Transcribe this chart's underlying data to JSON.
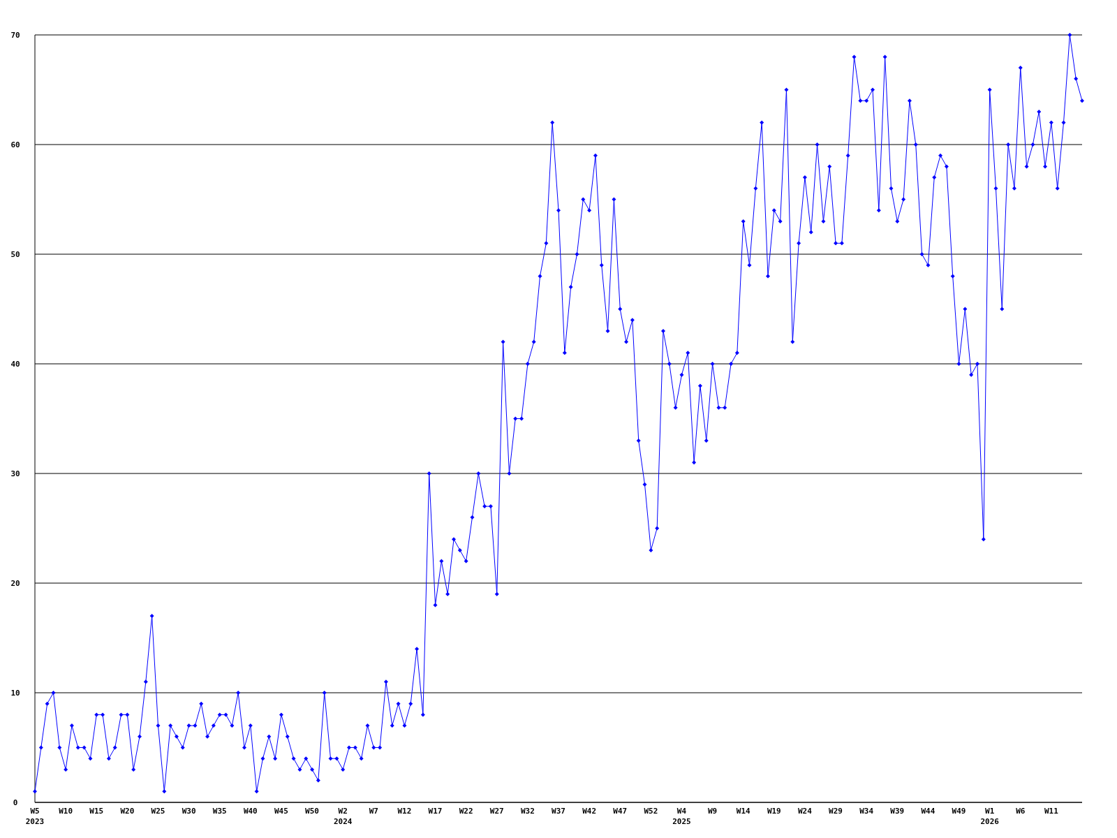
{
  "chart_data": {
    "type": "line",
    "categories": [
      "W5\n2023",
      null,
      null,
      null,
      null,
      "W10",
      null,
      null,
      null,
      null,
      "W15",
      null,
      null,
      null,
      null,
      "W20",
      null,
      null,
      null,
      null,
      "W25",
      null,
      null,
      null,
      null,
      "W30",
      null,
      null,
      null,
      null,
      "W35",
      null,
      null,
      null,
      null,
      "W40",
      null,
      null,
      null,
      null,
      "W45",
      null,
      null,
      null,
      null,
      "W50",
      null,
      null,
      null,
      null,
      "W2\n2024",
      null,
      null,
      null,
      null,
      "W7",
      null,
      null,
      null,
      null,
      "W12",
      null,
      null,
      null,
      null,
      "W17",
      null,
      null,
      null,
      null,
      "W22",
      null,
      null,
      null,
      null,
      "W27",
      null,
      null,
      null,
      null,
      "W32",
      null,
      null,
      null,
      null,
      "W37",
      null,
      null,
      null,
      null,
      "W42",
      null,
      null,
      null,
      null,
      "W47",
      null,
      null,
      null,
      null,
      "W52",
      null,
      null,
      null,
      null,
      "W4\n2025",
      null,
      null,
      null,
      null,
      "W9",
      null,
      null,
      null,
      null,
      "W14",
      null,
      null,
      null,
      null,
      "W19",
      null,
      null,
      null,
      null,
      "W24",
      null,
      null,
      null,
      null,
      "W29",
      null,
      null,
      null,
      null,
      "W34",
      null,
      null,
      null,
      null,
      "W39",
      null,
      null,
      null,
      null,
      "W44",
      null,
      null,
      null,
      null,
      "W49",
      null,
      null,
      null,
      null,
      "W1\n2026",
      null,
      null,
      null,
      null,
      "W6",
      null,
      null,
      null,
      null,
      "W11",
      null,
      null,
      null,
      null,
      null
    ],
    "series": [
      {
        "color": "#0000ff",
        "values": [
          1,
          5,
          9,
          10,
          5,
          3,
          7,
          5,
          5,
          4,
          8,
          8,
          4,
          5,
          8,
          8,
          3,
          6,
          11,
          17,
          7,
          1,
          7,
          6,
          5,
          7,
          7,
          9,
          6,
          7,
          8,
          8,
          7,
          10,
          5,
          7,
          1,
          4,
          6,
          4,
          8,
          6,
          4,
          3,
          4,
          3,
          2,
          10,
          4,
          4,
          3,
          5,
          5,
          4,
          7,
          5,
          5,
          11,
          7,
          9,
          7,
          9,
          14,
          8,
          30,
          18,
          22,
          19,
          24,
          23,
          22,
          26,
          30,
          27,
          27,
          19,
          42,
          30,
          35,
          35,
          40,
          42,
          48,
          51,
          62,
          54,
          41,
          47,
          50,
          55,
          54,
          59,
          49,
          43,
          55,
          45,
          42,
          44,
          33,
          29,
          23,
          25,
          43,
          40,
          36,
          39,
          41,
          31,
          38,
          33,
          40,
          36,
          36,
          40,
          41,
          53,
          49,
          56,
          62,
          48,
          54,
          53,
          65,
          42,
          51,
          57,
          52,
          60,
          53,
          58,
          51,
          51,
          59,
          68,
          64,
          64,
          65,
          54,
          68,
          56,
          53,
          55,
          64,
          60,
          50,
          49,
          57,
          59,
          58,
          48,
          40,
          45,
          39,
          40,
          24,
          65,
          56,
          45,
          60,
          56,
          67,
          58,
          60,
          63,
          58,
          62,
          56,
          62,
          70,
          66,
          64
        ]
      }
    ],
    "ylim": [
      0,
      70
    ],
    "yticks": [
      0,
      10,
      20,
      30,
      40,
      50,
      60,
      70
    ],
    "grid": "y",
    "marker": "diamond",
    "line_style": "solid"
  }
}
